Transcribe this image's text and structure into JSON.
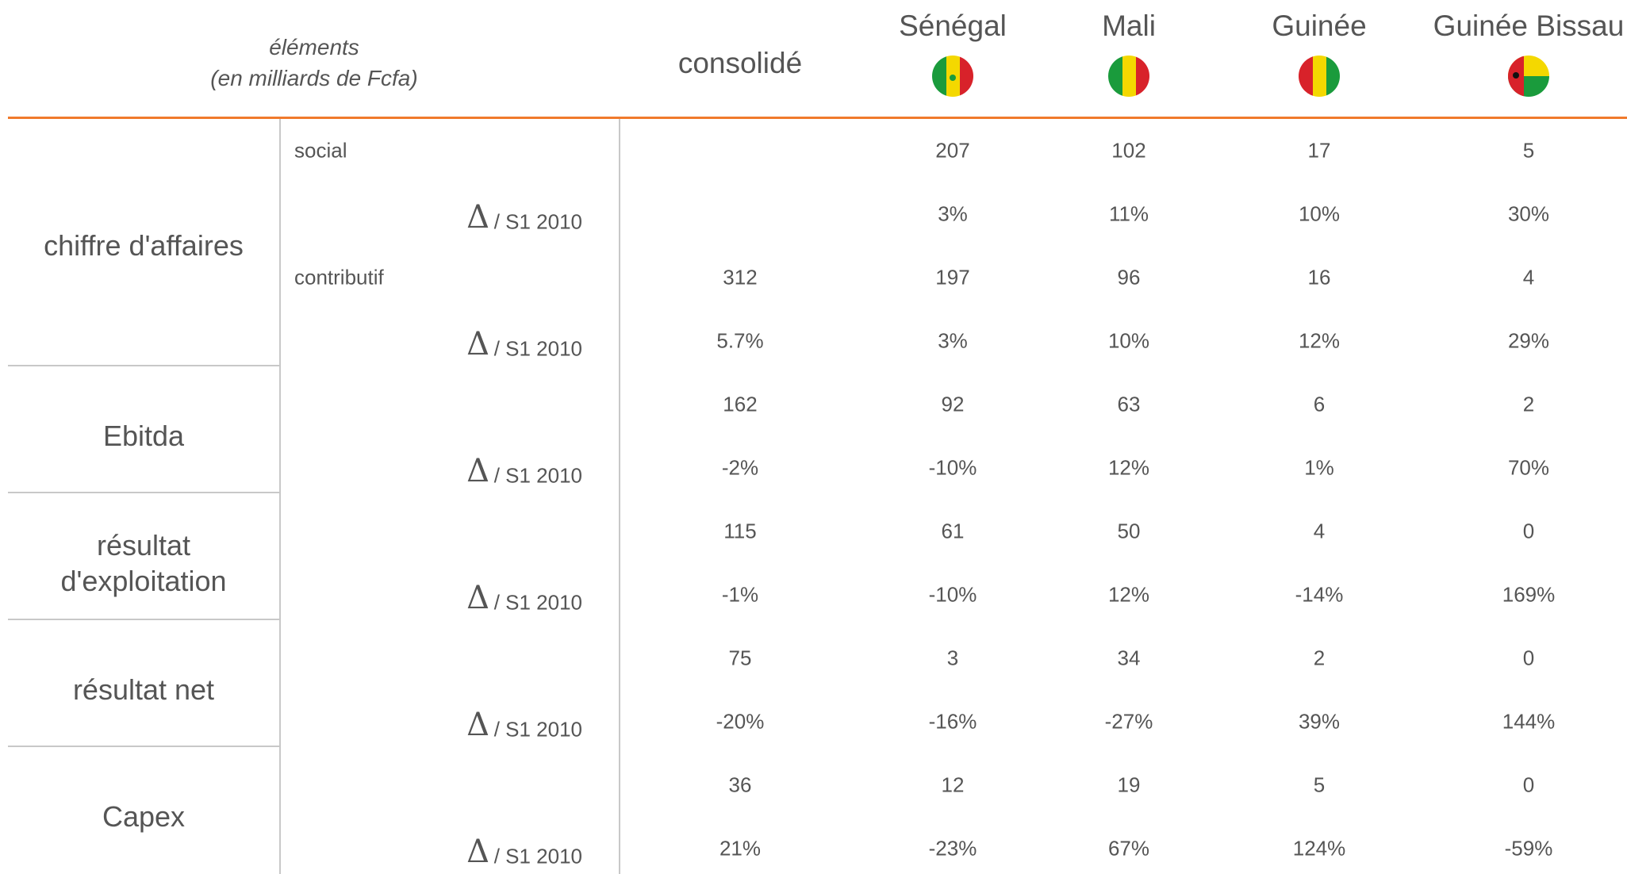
{
  "header": {
    "title": "éléments",
    "subtitle": "(en milliards de Fcfa)",
    "columns": [
      "consolidé",
      "Sénégal",
      "Mali",
      "Guinée",
      "Guinée Bissau"
    ]
  },
  "groups": [
    {
      "label": [
        "chiffre d'affaires"
      ],
      "rows": [
        {
          "label": "social",
          "values": [
            null,
            "207",
            "102",
            "17",
            "5"
          ]
        },
        {
          "delta": "Δ",
          "label": "/ S1 2010",
          "values": [
            null,
            "3%",
            "11%",
            "10%",
            "30%"
          ]
        },
        {
          "label": "contributif",
          "values": [
            "312",
            "197",
            "96",
            "16",
            "4"
          ]
        },
        {
          "delta": "Δ",
          "label": "/ S1 2010",
          "values": [
            "5.7%",
            "3%",
            "10%",
            "12%",
            "29%"
          ]
        }
      ]
    },
    {
      "label": [
        "Ebitda"
      ],
      "rows": [
        {
          "values": [
            "162",
            "92",
            "63",
            "6",
            "2"
          ]
        },
        {
          "delta": "Δ",
          "label": "/ S1 2010",
          "values": [
            "-2%",
            "-10%",
            "12%",
            "1%",
            "70%"
          ]
        }
      ]
    },
    {
      "label": [
        "résultat",
        "d'exploitation"
      ],
      "rows": [
        {
          "values": [
            "115",
            "61",
            "50",
            "4",
            "0"
          ]
        },
        {
          "delta": "Δ",
          "label": "/ S1 2010",
          "values": [
            "-1%",
            "-10%",
            "12%",
            "-14%",
            "169%"
          ]
        }
      ]
    },
    {
      "label": [
        "résultat net"
      ],
      "rows": [
        {
          "values": [
            "75",
            "3",
            "34",
            "2",
            "0"
          ]
        },
        {
          "delta": "Δ",
          "label": "/ S1 2010",
          "values": [
            "-20%",
            "-16%",
            "-27%",
            "39%",
            "144%"
          ]
        }
      ]
    },
    {
      "label": [
        "Capex"
      ],
      "rows": [
        {
          "values": [
            "36",
            "12",
            "19",
            "5",
            "0"
          ]
        },
        {
          "delta": "Δ",
          "label": "/ S1 2010",
          "values": [
            "21%",
            "-23%",
            "67%",
            "124%",
            "-59%"
          ]
        }
      ]
    }
  ]
}
